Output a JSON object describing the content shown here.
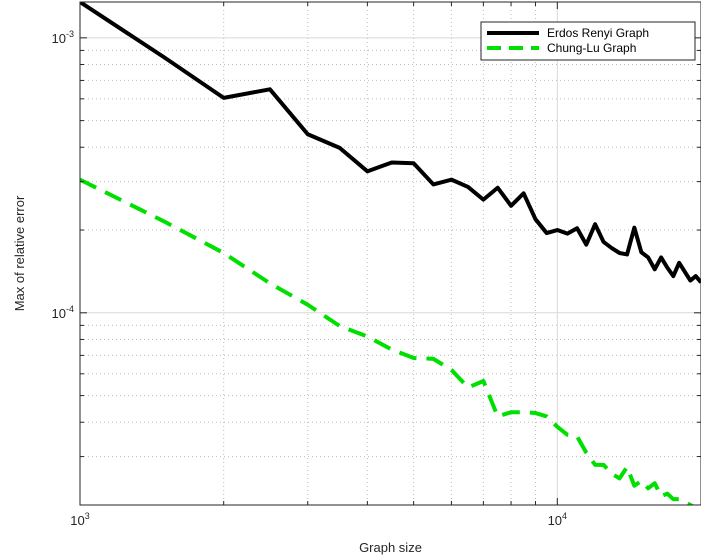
{
  "chart_data": {
    "type": "line",
    "title": "",
    "xlabel": "Graph size",
    "ylabel": "Max of relative error",
    "x_scale": "log",
    "y_scale": "log",
    "xlim": [
      1000,
      20000
    ],
    "ylim": [
      2e-05,
      0.00135
    ],
    "x_major_ticks": [
      {
        "value": 1000,
        "base": "10",
        "exp": "3"
      },
      {
        "value": 10000,
        "base": "10",
        "exp": "4"
      }
    ],
    "y_major_ticks": [
      {
        "value": 0.001,
        "base": "10",
        "exp": "-3"
      },
      {
        "value": 0.0001,
        "base": "10",
        "exp": "-4"
      }
    ],
    "grid": true,
    "legend_position": "top-right",
    "series": [
      {
        "name": "Erdos Renyi Graph",
        "color": "#000000",
        "style": "solid",
        "x": [
          1000,
          1500,
          2000,
          2500,
          3000,
          3500,
          4000,
          4500,
          5000,
          5500,
          6000,
          6500,
          7000,
          7500,
          8000,
          8500,
          9000,
          9500,
          10000,
          10500,
          11000,
          11500,
          12000,
          12500,
          13000,
          13500,
          14000,
          14500,
          15000,
          15500,
          16000,
          16500,
          17000,
          17500,
          18000,
          18500,
          19000,
          19500,
          20000
        ],
        "y": [
          0.00135,
          0.00085,
          0.000605,
          0.00065,
          0.000446,
          0.000398,
          0.000327,
          0.000352,
          0.00035,
          0.000293,
          0.000305,
          0.000287,
          0.000258,
          0.000285,
          0.000245,
          0.000272,
          0.000219,
          0.000195,
          0.0002,
          0.000194,
          0.000203,
          0.000177,
          0.00021,
          0.000181,
          0.000172,
          0.000165,
          0.000163,
          0.000204,
          0.000166,
          0.000159,
          0.000144,
          0.000159,
          0.000146,
          0.000136,
          0.000152,
          0.000141,
          0.000131,
          0.000136,
          0.000129
        ]
      },
      {
        "name": "Chung-Lu Graph",
        "color": "#00e000",
        "style": "dashed",
        "x": [
          1000,
          1500,
          2000,
          2500,
          3000,
          3500,
          4000,
          4500,
          5000,
          5500,
          6000,
          6500,
          7000,
          7500,
          8000,
          8500,
          9000,
          9500,
          10000,
          10500,
          11000,
          11500,
          12000,
          12500,
          13000,
          13500,
          14000,
          14500,
          15000,
          15500,
          16000,
          16500,
          17000,
          17500,
          18000,
          18500,
          19000,
          19500,
          20000
        ],
        "y": [
          0.000305,
          0.000215,
          0.000165,
          0.000128,
          0.000107,
          8.95e-05,
          8.2e-05,
          7.35e-05,
          6.85e-05,
          6.8e-05,
          6.2e-05,
          5.35e-05,
          5.65e-05,
          4.2e-05,
          4.35e-05,
          4.35e-05,
          4.32e-05,
          4.2e-05,
          3.85e-05,
          3.6e-05,
          3.55e-05,
          3.1e-05,
          2.8e-05,
          2.8e-05,
          2.6e-05,
          2.5e-05,
          2.75e-05,
          2.35e-05,
          2.45e-05,
          2.3e-05,
          2.4e-05,
          2.15e-05,
          2.2e-05,
          2.1e-05,
          2.1e-05,
          2.05e-05,
          2e-05,
          1.95e-05,
          1.9e-05
        ]
      }
    ]
  }
}
